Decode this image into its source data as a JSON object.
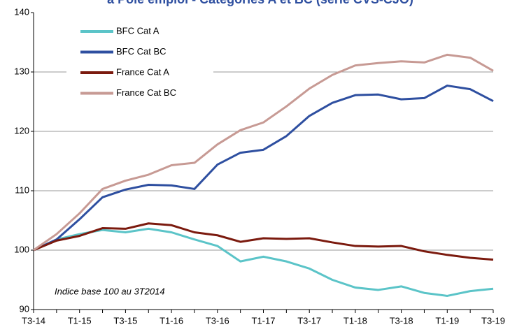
{
  "chart_data": {
    "type": "line",
    "title": "à Pôle emploi - Catégories A et BC (série CVS-CJO)",
    "annotation": "Indice base 100 au 3T2014",
    "categories": [
      "T3-14",
      null,
      "T1-15",
      null,
      "T3-15",
      null,
      "T1-16",
      null,
      "T3-16",
      null,
      "T1-17",
      null,
      "T3-17",
      null,
      "T1-18",
      null,
      "T3-18",
      null,
      "T1-19",
      null,
      "T3-19"
    ],
    "series": [
      {
        "name": "BFC  Cat A",
        "color": "#5bc4c8",
        "values": [
          100,
          101.8,
          102.7,
          103.4,
          103.0,
          103.6,
          103.0,
          101.8,
          100.7,
          98.1,
          98.9,
          98.1,
          96.9,
          95.0,
          93.7,
          93.3,
          93.9,
          92.8,
          92.3,
          93.1,
          93.5
        ]
      },
      {
        "name": "BFC  Cat BC",
        "color": "#2e4fa0",
        "values": [
          100,
          101.8,
          105.2,
          108.9,
          110.2,
          111.0,
          110.9,
          110.3,
          114.4,
          116.4,
          116.9,
          119.2,
          122.6,
          124.8,
          126.1,
          126.2,
          125.4,
          125.6,
          127.7,
          127.1,
          125.1
        ]
      },
      {
        "name": "France Cat A",
        "color": "#7b1a0e",
        "values": [
          100,
          101.6,
          102.4,
          103.7,
          103.6,
          104.5,
          104.2,
          103.0,
          102.5,
          101.4,
          102.0,
          101.9,
          102.0,
          101.3,
          100.7,
          100.6,
          100.7,
          99.8,
          99.2,
          98.7,
          98.4
        ]
      },
      {
        "name": "France Cat BC",
        "color": "#c79a94",
        "values": [
          100,
          102.7,
          106.2,
          110.3,
          111.7,
          112.7,
          114.3,
          114.7,
          117.8,
          120.2,
          121.5,
          124.2,
          127.2,
          129.5,
          131.1,
          131.5,
          131.8,
          131.6,
          132.9,
          132.4,
          130.2
        ]
      }
    ],
    "ylim": [
      90,
      140
    ],
    "yticks": [
      90,
      100,
      110,
      120,
      130,
      140
    ],
    "grid": true,
    "legend": "top-left"
  }
}
